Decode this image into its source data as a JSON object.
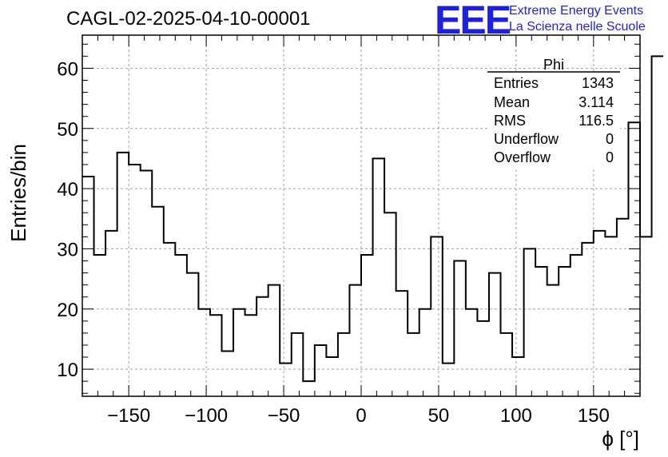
{
  "header": {
    "title": "CAGL-02-2025-04-10-00001",
    "logo_text": "EEE",
    "logo_line1": "Extreme Energy Events",
    "logo_line2": "La Scienza nelle Scuole"
  },
  "colors": {
    "line": "#000000",
    "grid": "#a0a0a0",
    "logo": "#1f1fe0"
  },
  "stats": {
    "title": "Phi",
    "rows": [
      {
        "label": "Entries",
        "value": "1343"
      },
      {
        "label": "Mean",
        "value": "3.114"
      },
      {
        "label": "RMS",
        "value": "116.5"
      },
      {
        "label": "Underflow",
        "value": "0"
      },
      {
        "label": "Overflow",
        "value": "0"
      }
    ]
  },
  "chart_data": {
    "type": "histogram",
    "title": "CAGL-02-2025-04-10-00001",
    "xlabel": "ϕ [°]",
    "ylabel": "Entries/bin",
    "xlim": [
      -180,
      180
    ],
    "ylim": [
      5.5,
      65.5
    ],
    "grid": true,
    "bin_width": 7.5,
    "bin_edges_start": -180,
    "x_ticks": [
      -150,
      -100,
      -50,
      0,
      50,
      100,
      150
    ],
    "y_ticks": [
      10,
      20,
      30,
      40,
      50,
      60
    ],
    "values": [
      42,
      29,
      33,
      46,
      44,
      43,
      37,
      31,
      29,
      26,
      20,
      19,
      13,
      20,
      19,
      22,
      24,
      11,
      16,
      8,
      14,
      12,
      16,
      24,
      29,
      45,
      36,
      23,
      16,
      20,
      32,
      11,
      28,
      20,
      18,
      26,
      16,
      12,
      30,
      27,
      24,
      27,
      29,
      31,
      33,
      32,
      35,
      51,
      32,
      62
    ]
  }
}
